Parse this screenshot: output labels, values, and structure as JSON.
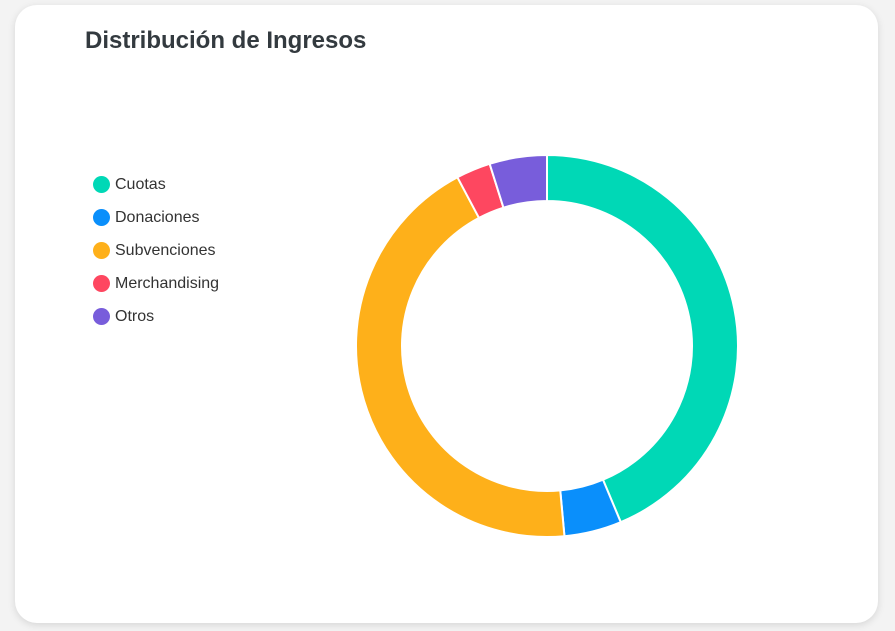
{
  "chart_data": {
    "type": "pie",
    "variant": "doughnut",
    "title": "Distribución de Ingresos",
    "categories": [
      "Cuotas",
      "Donaciones",
      "Subvenciones",
      "Merchandising",
      "Otros"
    ],
    "values": [
      45,
      5,
      45,
      3,
      5
    ],
    "colors": [
      "#00d8b6",
      "#0a8ffb",
      "#feb01a",
      "#fe4760",
      "#785ddb"
    ],
    "legend": "left"
  }
}
